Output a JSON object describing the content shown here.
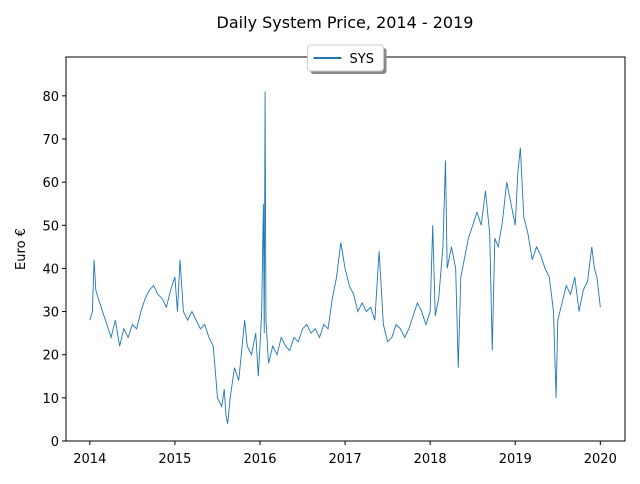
{
  "chart_data": {
    "type": "line",
    "title": "Daily System Price,  2014 - 2019",
    "ylabel": "Euro €",
    "x": [
      2014.0,
      2014.03,
      2014.05,
      2014.07,
      2014.1,
      2014.15,
      2014.2,
      2014.25,
      2014.3,
      2014.35,
      2014.4,
      2014.45,
      2014.5,
      2014.55,
      2014.6,
      2014.65,
      2014.7,
      2014.75,
      2014.8,
      2014.85,
      2014.9,
      2014.95,
      2015.0,
      2015.03,
      2015.06,
      2015.1,
      2015.15,
      2015.2,
      2015.25,
      2015.3,
      2015.35,
      2015.4,
      2015.45,
      2015.48,
      2015.5,
      2015.55,
      2015.58,
      2015.6,
      2015.62,
      2015.65,
      2015.7,
      2015.75,
      2015.78,
      2015.82,
      2015.85,
      2015.9,
      2015.95,
      2015.98,
      2016.0,
      2016.02,
      2016.04,
      2016.05,
      2016.06,
      2016.07,
      2016.1,
      2016.15,
      2016.2,
      2016.25,
      2016.3,
      2016.35,
      2016.4,
      2016.45,
      2016.5,
      2016.55,
      2016.6,
      2016.65,
      2016.7,
      2016.75,
      2016.8,
      2016.85,
      2016.9,
      2016.95,
      2017.0,
      2017.05,
      2017.1,
      2017.15,
      2017.2,
      2017.25,
      2017.3,
      2017.35,
      2017.4,
      2017.45,
      2017.5,
      2017.55,
      2017.6,
      2017.65,
      2017.7,
      2017.75,
      2017.8,
      2017.85,
      2017.9,
      2017.95,
      2018.0,
      2018.03,
      2018.06,
      2018.1,
      2018.15,
      2018.18,
      2018.2,
      2018.25,
      2018.3,
      2018.33,
      2018.36,
      2018.4,
      2018.45,
      2018.5,
      2018.55,
      2018.6,
      2018.65,
      2018.7,
      2018.73,
      2018.76,
      2018.8,
      2018.85,
      2018.9,
      2018.95,
      2019.0,
      2019.03,
      2019.06,
      2019.1,
      2019.15,
      2019.2,
      2019.25,
      2019.3,
      2019.35,
      2019.4,
      2019.45,
      2019.48,
      2019.5,
      2019.55,
      2019.6,
      2019.65,
      2019.7,
      2019.75,
      2019.8,
      2019.85,
      2019.9,
      2019.93,
      2019.96,
      2020.0
    ],
    "series": [
      {
        "name": "SYS",
        "color": "#1f77b4",
        "values": [
          28,
          30,
          42,
          35,
          33,
          30,
          27,
          24,
          28,
          22,
          26,
          24,
          27,
          26,
          30,
          33,
          35,
          36,
          34,
          33,
          31,
          35,
          38,
          30,
          42,
          30,
          28,
          30,
          28,
          26,
          27,
          24,
          22,
          15,
          10,
          8,
          12,
          6,
          4,
          10,
          17,
          14,
          20,
          28,
          22,
          20,
          25,
          15,
          22,
          30,
          55,
          25,
          81,
          28,
          18,
          22,
          20,
          24,
          22,
          21,
          24,
          23,
          26,
          27,
          25,
          26,
          24,
          27,
          26,
          33,
          38,
          46,
          40,
          36,
          34,
          30,
          32,
          30,
          31,
          28,
          44,
          27,
          23,
          24,
          27,
          26,
          24,
          26,
          29,
          32,
          30,
          27,
          30,
          50,
          29,
          33,
          45,
          65,
          40,
          45,
          40,
          17,
          38,
          42,
          47,
          50,
          53,
          50,
          58,
          48,
          21,
          47,
          45,
          51,
          60,
          55,
          50,
          62,
          68,
          52,
          48,
          42,
          45,
          43,
          40,
          38,
          30,
          10,
          28,
          32,
          36,
          34,
          38,
          30,
          35,
          37,
          45,
          40,
          38,
          31
        ]
      }
    ],
    "xlim": [
      2013.72,
      2020.29
    ],
    "ylim": [
      0,
      89
    ],
    "xticks": [
      2014,
      2015,
      2016,
      2017,
      2018,
      2019,
      2020
    ],
    "yticks": [
      0,
      10,
      20,
      30,
      40,
      50,
      60,
      70,
      80
    ],
    "legend": "upper center"
  }
}
